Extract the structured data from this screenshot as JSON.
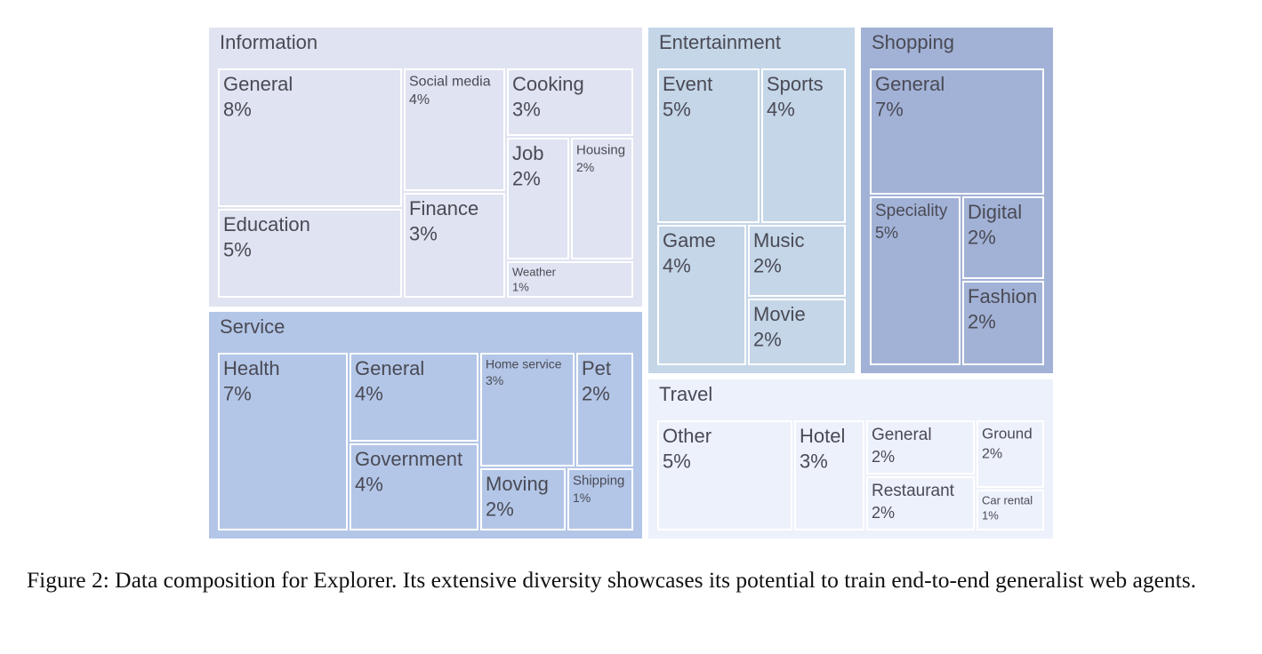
{
  "chart_data": {
    "type": "treemap",
    "groups": [
      {
        "name": "Information",
        "color": "#e0e3f1",
        "children": [
          {
            "name": "General",
            "value": "8%"
          },
          {
            "name": "Social media",
            "value": "4%"
          },
          {
            "name": "Cooking",
            "value": "3%"
          },
          {
            "name": "Job",
            "value": "2%"
          },
          {
            "name": "Housing",
            "value": "2%"
          },
          {
            "name": "Education",
            "value": "5%"
          },
          {
            "name": "Finance",
            "value": "3%"
          },
          {
            "name": "Weather",
            "value": "1%"
          }
        ]
      },
      {
        "name": "Entertainment",
        "color": "#c4d6e8",
        "children": [
          {
            "name": "Event",
            "value": "5%"
          },
          {
            "name": "Sports",
            "value": "4%"
          },
          {
            "name": "Game",
            "value": "4%"
          },
          {
            "name": "Music",
            "value": "2%"
          },
          {
            "name": "Movie",
            "value": "2%"
          }
        ]
      },
      {
        "name": "Shopping",
        "color": "#a2b2d6",
        "children": [
          {
            "name": "General",
            "value": "7%"
          },
          {
            "name": "Speciality",
            "value": "5%"
          },
          {
            "name": "Digital",
            "value": "2%"
          },
          {
            "name": "Fashion",
            "value": "2%"
          }
        ]
      },
      {
        "name": "Service",
        "color": "#b3c6e7",
        "children": [
          {
            "name": "Health",
            "value": "7%"
          },
          {
            "name": "General",
            "value": "4%"
          },
          {
            "name": "Home service",
            "value": "3%"
          },
          {
            "name": "Pet",
            "value": "2%"
          },
          {
            "name": "Government",
            "value": "4%"
          },
          {
            "name": "Moving",
            "value": "2%"
          },
          {
            "name": "Shipping",
            "value": "1%"
          }
        ]
      },
      {
        "name": "Travel",
        "color": "#edf1fb",
        "children": [
          {
            "name": "Other",
            "value": "5%"
          },
          {
            "name": "Hotel",
            "value": "3%"
          },
          {
            "name": "General",
            "value": "2%"
          },
          {
            "name": "Ground",
            "value": "2%"
          },
          {
            "name": "Restaurant",
            "value": "2%"
          },
          {
            "name": "Car rental",
            "value": "1%"
          }
        ]
      }
    ]
  },
  "caption": "Figure 2: Data composition for Explorer. Its extensive diversity showcases its potential to train end-to-end generalist web agents."
}
